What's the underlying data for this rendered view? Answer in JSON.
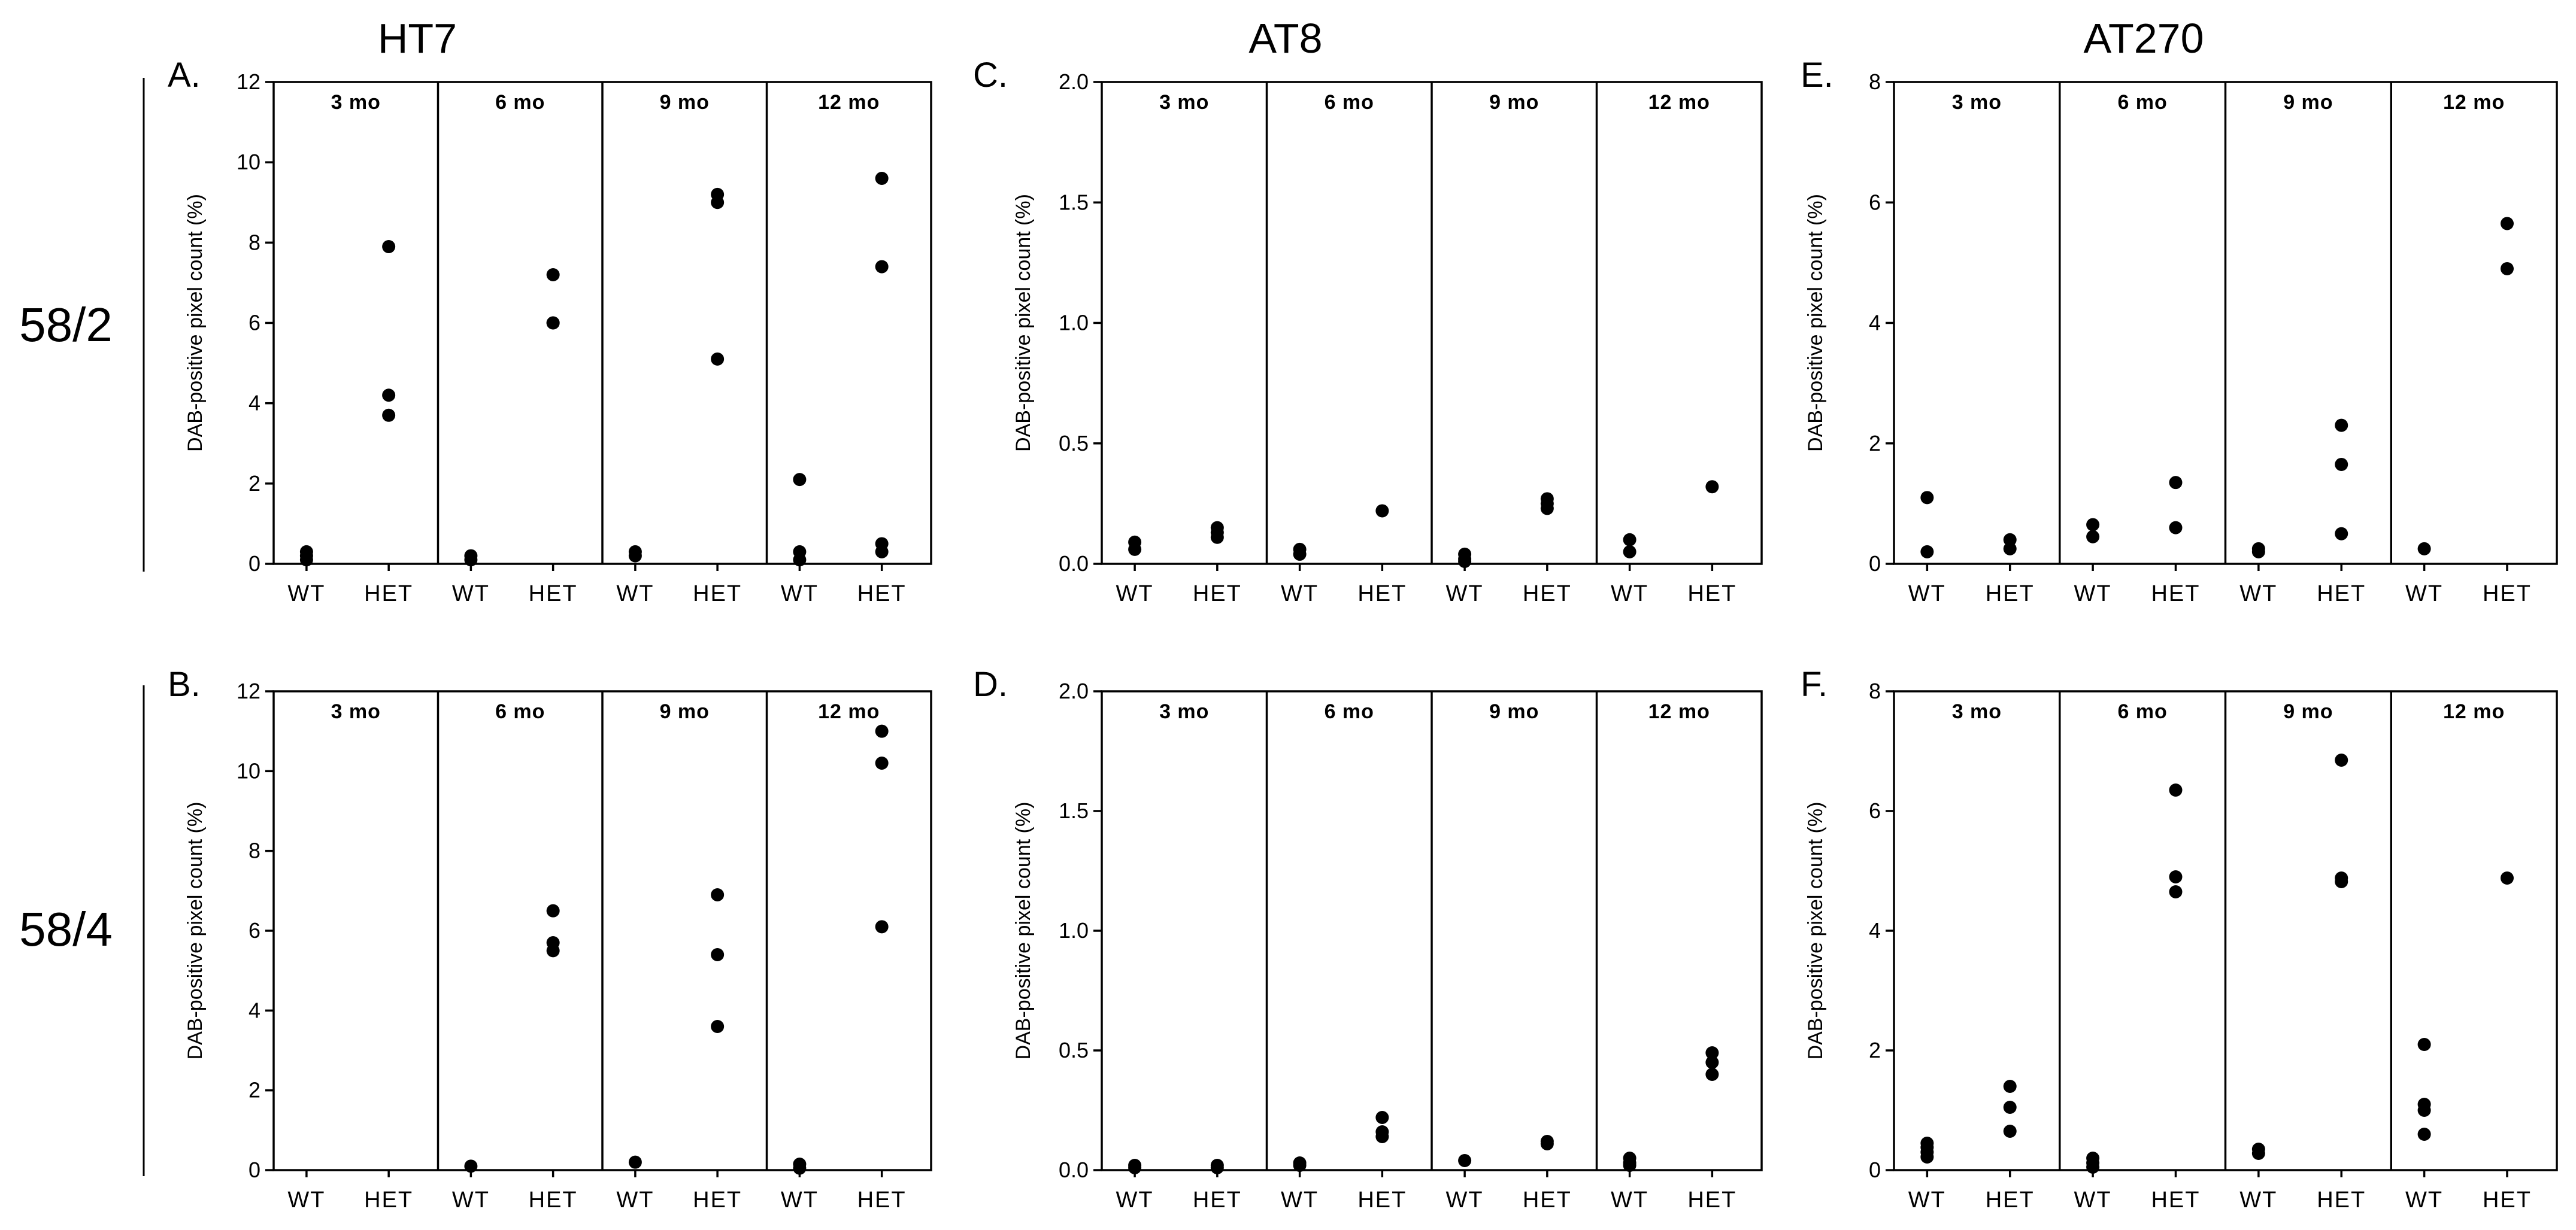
{
  "column_titles": [
    "HT7",
    "AT8",
    "AT270"
  ],
  "row_titles": [
    "58/2",
    "58/4"
  ],
  "chart_data": [
    {
      "type": "scatter",
      "panel_label": "A.",
      "antibody": "HT7",
      "line": "58/2",
      "ylabel": "DAB-positive pixel count (%)",
      "ylim": [
        0,
        12
      ],
      "yticks": [
        "0",
        "2",
        "4",
        "6",
        "8",
        "10",
        "12"
      ],
      "segments": [
        {
          "label": "3 mo",
          "groups": [
            {
              "name": "WT",
              "values": [
                0.1,
                0.2,
                0.3
              ]
            },
            {
              "name": "HET",
              "values": [
                7.9,
                4.2,
                3.7
              ]
            }
          ]
        },
        {
          "label": "6 mo",
          "groups": [
            {
              "name": "WT",
              "values": [
                0.1,
                0.2
              ]
            },
            {
              "name": "HET",
              "values": [
                7.2,
                6.0,
                6.0
              ]
            }
          ]
        },
        {
          "label": "9 mo",
          "groups": [
            {
              "name": "WT",
              "values": [
                0.2,
                0.3
              ]
            },
            {
              "name": "HET",
              "values": [
                9.2,
                9.0,
                5.1
              ]
            }
          ]
        },
        {
          "label": "12 mo",
          "groups": [
            {
              "name": "WT",
              "values": [
                2.1,
                0.3,
                0.1
              ]
            },
            {
              "name": "HET",
              "values": [
                9.6,
                7.4,
                0.5,
                0.3
              ]
            }
          ]
        }
      ]
    },
    {
      "type": "scatter",
      "panel_label": "C.",
      "antibody": "AT8",
      "line": "58/2",
      "ylabel": "DAB-positive pixel count (%)",
      "ylim": [
        0,
        2.0
      ],
      "yticks": [
        "0.0",
        "0.5",
        "1.0",
        "1.5",
        "2.0"
      ],
      "segments": [
        {
          "label": "3 mo",
          "groups": [
            {
              "name": "WT",
              "values": [
                0.09,
                0.06
              ]
            },
            {
              "name": "HET",
              "values": [
                0.15,
                0.13,
                0.11
              ]
            }
          ]
        },
        {
          "label": "6 mo",
          "groups": [
            {
              "name": "WT",
              "values": [
                0.06,
                0.04
              ]
            },
            {
              "name": "HET",
              "values": [
                0.22
              ]
            }
          ]
        },
        {
          "label": "9 mo",
          "groups": [
            {
              "name": "WT",
              "values": [
                0.04,
                0.02,
                0.01
              ]
            },
            {
              "name": "HET",
              "values": [
                0.27,
                0.25,
                0.23
              ]
            }
          ]
        },
        {
          "label": "12 mo",
          "groups": [
            {
              "name": "WT",
              "values": [
                0.1,
                0.05
              ]
            },
            {
              "name": "HET",
              "values": [
                0.32
              ]
            }
          ]
        }
      ]
    },
    {
      "type": "scatter",
      "panel_label": "E.",
      "antibody": "AT270",
      "line": "58/2",
      "ylabel": "DAB-positive pixel count (%)",
      "ylim": [
        0,
        8
      ],
      "yticks": [
        "0",
        "2",
        "4",
        "6",
        "8"
      ],
      "segments": [
        {
          "label": "3 mo",
          "groups": [
            {
              "name": "WT",
              "values": [
                1.1,
                0.2
              ]
            },
            {
              "name": "HET",
              "values": [
                0.4,
                0.25
              ]
            }
          ]
        },
        {
          "label": "6 mo",
          "groups": [
            {
              "name": "WT",
              "values": [
                0.65,
                0.45
              ]
            },
            {
              "name": "HET",
              "values": [
                1.35,
                0.6
              ]
            }
          ]
        },
        {
          "label": "9 mo",
          "groups": [
            {
              "name": "WT",
              "values": [
                0.25,
                0.2
              ]
            },
            {
              "name": "HET",
              "values": [
                2.3,
                1.65,
                0.5
              ]
            }
          ]
        },
        {
          "label": "12 mo",
          "groups": [
            {
              "name": "WT",
              "values": [
                0.25
              ]
            },
            {
              "name": "HET",
              "values": [
                5.65,
                4.9
              ]
            }
          ]
        }
      ]
    },
    {
      "type": "scatter",
      "panel_label": "B.",
      "antibody": "HT7",
      "line": "58/4",
      "ylabel": "DAB-positive pixel count (%)",
      "ylim": [
        0,
        12
      ],
      "yticks": [
        "0",
        "2",
        "4",
        "6",
        "8",
        "10",
        "12"
      ],
      "segments": [
        {
          "label": "3 mo",
          "groups": [
            {
              "name": "WT",
              "values": []
            },
            {
              "name": "HET",
              "values": []
            }
          ]
        },
        {
          "label": "6 mo",
          "groups": [
            {
              "name": "WT",
              "values": [
                0.1
              ]
            },
            {
              "name": "HET",
              "values": [
                6.5,
                5.7,
                5.5
              ]
            }
          ]
        },
        {
          "label": "9 mo",
          "groups": [
            {
              "name": "WT",
              "values": [
                0.2
              ]
            },
            {
              "name": "HET",
              "values": [
                6.9,
                5.4,
                3.6
              ]
            }
          ]
        },
        {
          "label": "12 mo",
          "groups": [
            {
              "name": "WT",
              "values": [
                0.15,
                0.05
              ]
            },
            {
              "name": "HET",
              "values": [
                11.0,
                10.2,
                6.1
              ]
            }
          ]
        }
      ]
    },
    {
      "type": "scatter",
      "panel_label": "D.",
      "antibody": "AT8",
      "line": "58/4",
      "ylabel": "DAB-positive pixel count (%)",
      "ylim": [
        0,
        2.0
      ],
      "yticks": [
        "0.0",
        "0.5",
        "1.0",
        "1.5",
        "2.0"
      ],
      "segments": [
        {
          "label": "3 mo",
          "groups": [
            {
              "name": "WT",
              "values": [
                0.02,
                0.01
              ]
            },
            {
              "name": "HET",
              "values": [
                0.02,
                0.01
              ]
            }
          ]
        },
        {
          "label": "6 mo",
          "groups": [
            {
              "name": "WT",
              "values": [
                0.03,
                0.02
              ]
            },
            {
              "name": "HET",
              "values": [
                0.22,
                0.16,
                0.14
              ]
            }
          ]
        },
        {
          "label": "9 mo",
          "groups": [
            {
              "name": "WT",
              "values": [
                0.04
              ]
            },
            {
              "name": "HET",
              "values": [
                0.12,
                0.11
              ]
            }
          ]
        },
        {
          "label": "12 mo",
          "groups": [
            {
              "name": "WT",
              "values": [
                0.05,
                0.03,
                0.02
              ]
            },
            {
              "name": "HET",
              "values": [
                0.49,
                0.45,
                0.4
              ]
            }
          ]
        }
      ]
    },
    {
      "type": "scatter",
      "panel_label": "F.",
      "antibody": "AT270",
      "line": "58/4",
      "ylabel": "DAB-positive pixel count (%)",
      "ylim": [
        0,
        8
      ],
      "yticks": [
        "0",
        "2",
        "4",
        "6",
        "8"
      ],
      "segments": [
        {
          "label": "3 mo",
          "groups": [
            {
              "name": "WT",
              "values": [
                0.45,
                0.38,
                0.3,
                0.22
              ]
            },
            {
              "name": "HET",
              "values": [
                1.4,
                1.05,
                0.65
              ]
            }
          ]
        },
        {
          "label": "6 mo",
          "groups": [
            {
              "name": "WT",
              "values": [
                0.2,
                0.12,
                0.05
              ]
            },
            {
              "name": "HET",
              "values": [
                6.35,
                4.9,
                4.65
              ]
            }
          ]
        },
        {
          "label": "9 mo",
          "groups": [
            {
              "name": "WT",
              "values": [
                0.35,
                0.28
              ]
            },
            {
              "name": "HET",
              "values": [
                6.85,
                4.88,
                4.82
              ]
            }
          ]
        },
        {
          "label": "12 mo",
          "groups": [
            {
              "name": "WT",
              "values": [
                2.1,
                1.1,
                1.0,
                0.6
              ]
            },
            {
              "name": "HET",
              "values": [
                4.88
              ]
            }
          ]
        }
      ]
    }
  ]
}
